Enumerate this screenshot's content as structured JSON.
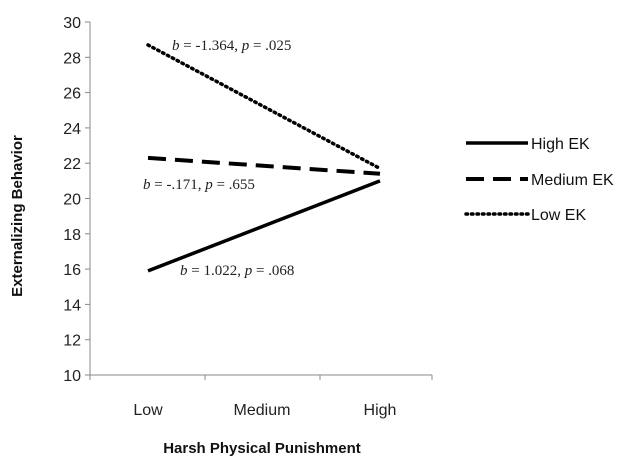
{
  "chart_data": {
    "type": "line",
    "title": "",
    "xlabel": "Harsh Physical Punishment",
    "ylabel": "Externalizing Behavior",
    "categories": [
      "Low",
      "Medium",
      "High"
    ],
    "ylim": [
      10,
      30
    ],
    "yticks": [
      10,
      12,
      14,
      16,
      18,
      20,
      22,
      24,
      26,
      28,
      30
    ],
    "grid": false,
    "legend_position": "right",
    "series": [
      {
        "name": "High EK",
        "x": [
          "Low",
          "High"
        ],
        "values": [
          15.9,
          21.0
        ],
        "style": "solid",
        "color": "#000000"
      },
      {
        "name": "Medium EK",
        "x": [
          "Low",
          "High"
        ],
        "values": [
          22.3,
          21.4
        ],
        "style": "dashed",
        "color": "#000000"
      },
      {
        "name": "Low EK",
        "x": [
          "Low",
          "High"
        ],
        "values": [
          28.7,
          21.7
        ],
        "style": "dotted",
        "color": "#000000"
      }
    ],
    "annotations": [
      {
        "series": "Low EK",
        "b_label": "b",
        "b_value": " = -1.364, ",
        "p_label": "p",
        "p_value": " = .025"
      },
      {
        "series": "Medium EK",
        "b_label": "b",
        "b_value": " = -.171, ",
        "p_label": "p",
        "p_value": " = .655"
      },
      {
        "series": "High EK",
        "b_label": "b",
        "b_value": " = 1.022, ",
        "p_label": "p",
        "p_value": " = .068"
      }
    ]
  }
}
